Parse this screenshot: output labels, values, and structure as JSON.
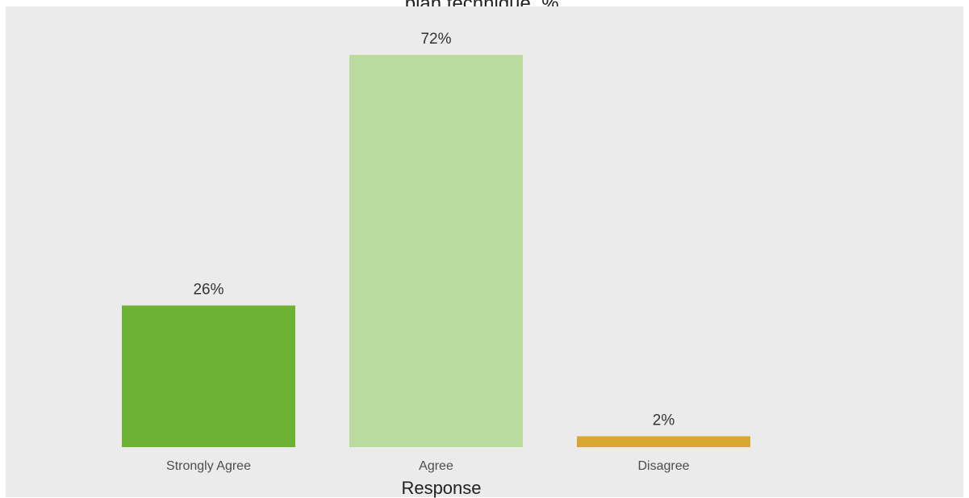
{
  "chart_data": {
    "type": "bar",
    "title": "plan technique, %.",
    "xlabel": "Response",
    "ylabel": "",
    "categories": [
      "Strongly Agree",
      "Agree",
      "Disagree"
    ],
    "values": [
      26,
      72,
      2
    ],
    "data_labels": [
      "26%",
      "72%",
      "2%"
    ],
    "colors": [
      "#6db234",
      "#badb9e",
      "#d8a830"
    ],
    "background_color": "#ebebeb",
    "ylim": [
      0,
      72
    ],
    "grid": false,
    "legend": "none"
  }
}
